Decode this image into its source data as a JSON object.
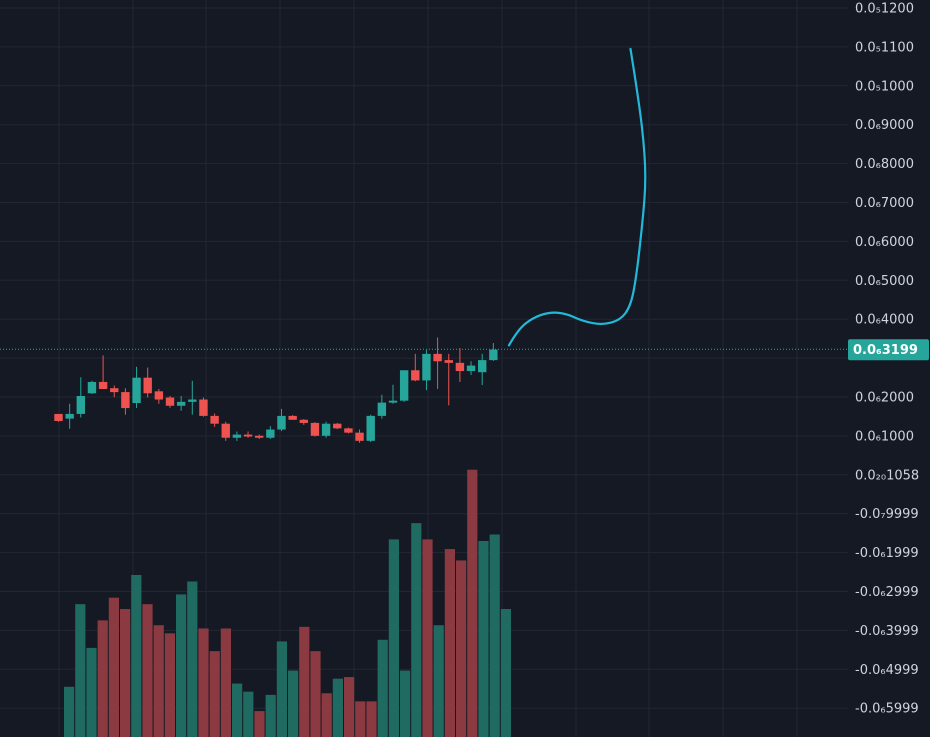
{
  "colors": {
    "background": "#151924",
    "grid": "#232733",
    "text": "#d1d4dc",
    "up": "#26a69a",
    "down": "#ef5350",
    "volume_up": "#1f6b62",
    "volume_down": "#8a3a40",
    "drawing": "#22b8d8",
    "last_price_line": "#26a69a"
  },
  "chart_data": {
    "type": "candlestick",
    "price_axis": {
      "tick_labels": [
        "0.0₅1200",
        "0.0₅1100",
        "0.0₅1000",
        "0.0₆9000",
        "0.0₆8000",
        "0.0₆7000",
        "0.0₆6000",
        "0.0₆5000",
        "0.0₆4000",
        "0.0₆3199",
        "0.0₆2000",
        "0.0₆1000",
        "0.0₂₀1058",
        "-0.0₇9999",
        "-0.0₆1999",
        "-0.0₆2999",
        "-0.0₆3999",
        "-0.0₆4999",
        "-0.0₆5999"
      ],
      "last_price_label": "0.0₆3199",
      "last_price": 3.199e-07
    },
    "candles": [
      {
        "o": 1.54e-07,
        "h": 1.52e-07,
        "l": 1.34e-07,
        "c": 1.36e-07
      },
      {
        "o": 1.42e-07,
        "h": 1.8e-07,
        "l": 1.16e-07,
        "c": 1.54e-07
      },
      {
        "o": 1.54e-07,
        "h": 2.48e-07,
        "l": 1.45e-07,
        "c": 2e-07
      },
      {
        "o": 2.07e-07,
        "h": 2.39e-07,
        "l": 2.05e-07,
        "c": 2.36e-07
      },
      {
        "o": 2.36e-07,
        "h": 3.04e-07,
        "l": 2.18e-07,
        "c": 2.18e-07
      },
      {
        "o": 2.2e-07,
        "h": 2.27e-07,
        "l": 1.97e-07,
        "c": 2.1e-07
      },
      {
        "o": 2.1e-07,
        "h": 2.2e-07,
        "l": 1.52e-07,
        "c": 1.69e-07
      },
      {
        "o": 1.82e-07,
        "h": 2.75e-07,
        "l": 1.69e-07,
        "c": 2.47e-07
      },
      {
        "o": 2.47e-07,
        "h": 2.73e-07,
        "l": 1.96e-07,
        "c": 2.07e-07
      },
      {
        "o": 2.12e-07,
        "h": 2.18e-07,
        "l": 1.8e-07,
        "c": 1.91e-07
      },
      {
        "o": 1.96e-07,
        "h": 2e-07,
        "l": 1.7e-07,
        "c": 1.75e-07
      },
      {
        "o": 1.75e-07,
        "h": 2e-07,
        "l": 1.62e-07,
        "c": 1.85e-07
      },
      {
        "o": 1.85e-07,
        "h": 2.39e-07,
        "l": 1.52e-07,
        "c": 1.91e-07
      },
      {
        "o": 1.91e-07,
        "h": 1.96e-07,
        "l": 1.47e-07,
        "c": 1.49e-07
      },
      {
        "o": 1.49e-07,
        "h": 1.55e-07,
        "l": 1.21e-07,
        "c": 1.29e-07
      },
      {
        "o": 1.29e-07,
        "h": 1.34e-07,
        "l": 8.5e-08,
        "c": 9.3e-08
      },
      {
        "o": 9.3e-08,
        "h": 1.09e-07,
        "l": 8.5e-08,
        "c": 1.01e-07
      },
      {
        "o": 1.01e-07,
        "h": 1.09e-07,
        "l": 9.3e-08,
        "c": 9.6e-08
      },
      {
        "o": 9.8e-08,
        "h": 1.01e-07,
        "l": 9e-08,
        "c": 9.3e-08
      },
      {
        "o": 9.3e-08,
        "h": 1.23e-07,
        "l": 9e-08,
        "c": 1.14e-07
      },
      {
        "o": 1.14e-07,
        "h": 1.67e-07,
        "l": 1.1e-07,
        "c": 1.49e-07
      },
      {
        "o": 1.49e-07,
        "h": 1.51e-07,
        "l": 1.39e-07,
        "c": 1.39e-07
      },
      {
        "o": 1.39e-07,
        "h": 1.41e-07,
        "l": 1.26e-07,
        "c": 1.31e-07
      },
      {
        "o": 1.31e-07,
        "h": 1.33e-07,
        "l": 9.6e-08,
        "c": 9.8e-08
      },
      {
        "o": 9.8e-08,
        "h": 1.34e-07,
        "l": 9.3e-08,
        "c": 1.29e-07
      },
      {
        "o": 1.29e-07,
        "h": 1.31e-07,
        "l": 1.15e-07,
        "c": 1.17e-07
      },
      {
        "o": 1.17e-07,
        "h": 1.19e-07,
        "l": 1.04e-07,
        "c": 1.06e-07
      },
      {
        "o": 1.06e-07,
        "h": 1.14e-07,
        "l": 8e-08,
        "c": 8.5e-08
      },
      {
        "o": 8.5e-08,
        "h": 1.52e-07,
        "l": 8.2e-08,
        "c": 1.49e-07
      },
      {
        "o": 1.49e-07,
        "h": 2.03e-07,
        "l": 1.42e-07,
        "c": 1.83e-07
      },
      {
        "o": 1.83e-07,
        "h": 2.29e-07,
        "l": 1.8e-07,
        "c": 1.88e-07
      },
      {
        "o": 1.88e-07,
        "h": 2.66e-07,
        "l": 1.85e-07,
        "c": 2.66e-07
      },
      {
        "o": 2.66e-07,
        "h": 3.08e-07,
        "l": 2.38e-07,
        "c": 2.4e-07
      },
      {
        "o": 2.4e-07,
        "h": 3.18e-07,
        "l": 2.15e-07,
        "c": 3.08e-07
      },
      {
        "o": 3.08e-07,
        "h": 3.5e-07,
        "l": 2.18e-07,
        "c": 2.89e-07
      },
      {
        "o": 2.92e-07,
        "h": 3.08e-07,
        "l": 1.76e-07,
        "c": 2.85e-07
      },
      {
        "o": 2.85e-07,
        "h": 3.23e-07,
        "l": 2.36e-07,
        "c": 2.64e-07
      },
      {
        "o": 2.64e-07,
        "h": 2.89e-07,
        "l": 2.54e-07,
        "c": 2.78e-07
      },
      {
        "o": 2.61e-07,
        "h": 3.08e-07,
        "l": 2.28e-07,
        "c": 2.92e-07
      },
      {
        "o": 2.92e-07,
        "h": 3.36e-07,
        "l": 2.9e-07,
        "c": 3.19e-07
      }
    ],
    "volume": [
      {
        "v": 0.31,
        "dir": "up"
      },
      {
        "v": 0.82,
        "dir": "up"
      },
      {
        "v": 0.55,
        "dir": "up"
      },
      {
        "v": 0.72,
        "dir": "down"
      },
      {
        "v": 0.86,
        "dir": "down"
      },
      {
        "v": 0.79,
        "dir": "down"
      },
      {
        "v": 1.0,
        "dir": "up"
      },
      {
        "v": 0.82,
        "dir": "down"
      },
      {
        "v": 0.69,
        "dir": "down"
      },
      {
        "v": 0.64,
        "dir": "down"
      },
      {
        "v": 0.88,
        "dir": "up"
      },
      {
        "v": 0.96,
        "dir": "up"
      },
      {
        "v": 0.67,
        "dir": "down"
      },
      {
        "v": 0.53,
        "dir": "down"
      },
      {
        "v": 0.67,
        "dir": "down"
      },
      {
        "v": 0.33,
        "dir": "up"
      },
      {
        "v": 0.28,
        "dir": "up"
      },
      {
        "v": 0.16,
        "dir": "down"
      },
      {
        "v": 0.26,
        "dir": "up"
      },
      {
        "v": 0.59,
        "dir": "up"
      },
      {
        "v": 0.41,
        "dir": "up"
      },
      {
        "v": 0.68,
        "dir": "down"
      },
      {
        "v": 0.53,
        "dir": "down"
      },
      {
        "v": 0.27,
        "dir": "down"
      },
      {
        "v": 0.36,
        "dir": "up"
      },
      {
        "v": 0.37,
        "dir": "down"
      },
      {
        "v": 0.22,
        "dir": "down"
      },
      {
        "v": 0.22,
        "dir": "down"
      },
      {
        "v": 0.6,
        "dir": "up"
      },
      {
        "v": 1.22,
        "dir": "up"
      },
      {
        "v": 0.41,
        "dir": "up"
      },
      {
        "v": 1.32,
        "dir": "up"
      },
      {
        "v": 1.22,
        "dir": "down"
      },
      {
        "v": 0.69,
        "dir": "up"
      },
      {
        "v": 1.16,
        "dir": "down"
      },
      {
        "v": 1.09,
        "dir": "down"
      },
      {
        "v": 1.65,
        "dir": "down"
      },
      {
        "v": 1.21,
        "dir": "up"
      },
      {
        "v": 1.25,
        "dir": "up"
      },
      {
        "v": 0.79,
        "dir": "up"
      }
    ],
    "drawing": {
      "type": "freehand-arrow",
      "points": [
        {
          "i": 40.4,
          "p": 3.3e-07
        },
        {
          "i": 41.2,
          "p": 3.7e-07
        },
        {
          "i": 42.5,
          "p": 4e-07
        },
        {
          "i": 44.0,
          "p": 4.15e-07
        },
        {
          "i": 45.5,
          "p": 4.12e-07
        },
        {
          "i": 47.0,
          "p": 3.92e-07
        },
        {
          "i": 48.8,
          "p": 3.82e-07
        },
        {
          "i": 50.4,
          "p": 3.95e-07
        },
        {
          "i": 51.3,
          "p": 4.3e-07
        },
        {
          "i": 51.8,
          "p": 5e-07
        },
        {
          "i": 52.4,
          "p": 6.5e-07
        },
        {
          "i": 52.7,
          "p": 7.6e-07
        },
        {
          "i": 52.4,
          "p": 8.8e-07
        },
        {
          "i": 51.8,
          "p": 1e-06
        },
        {
          "i": 51.3,
          "p": 1.09e-06
        }
      ]
    },
    "grid": true
  }
}
